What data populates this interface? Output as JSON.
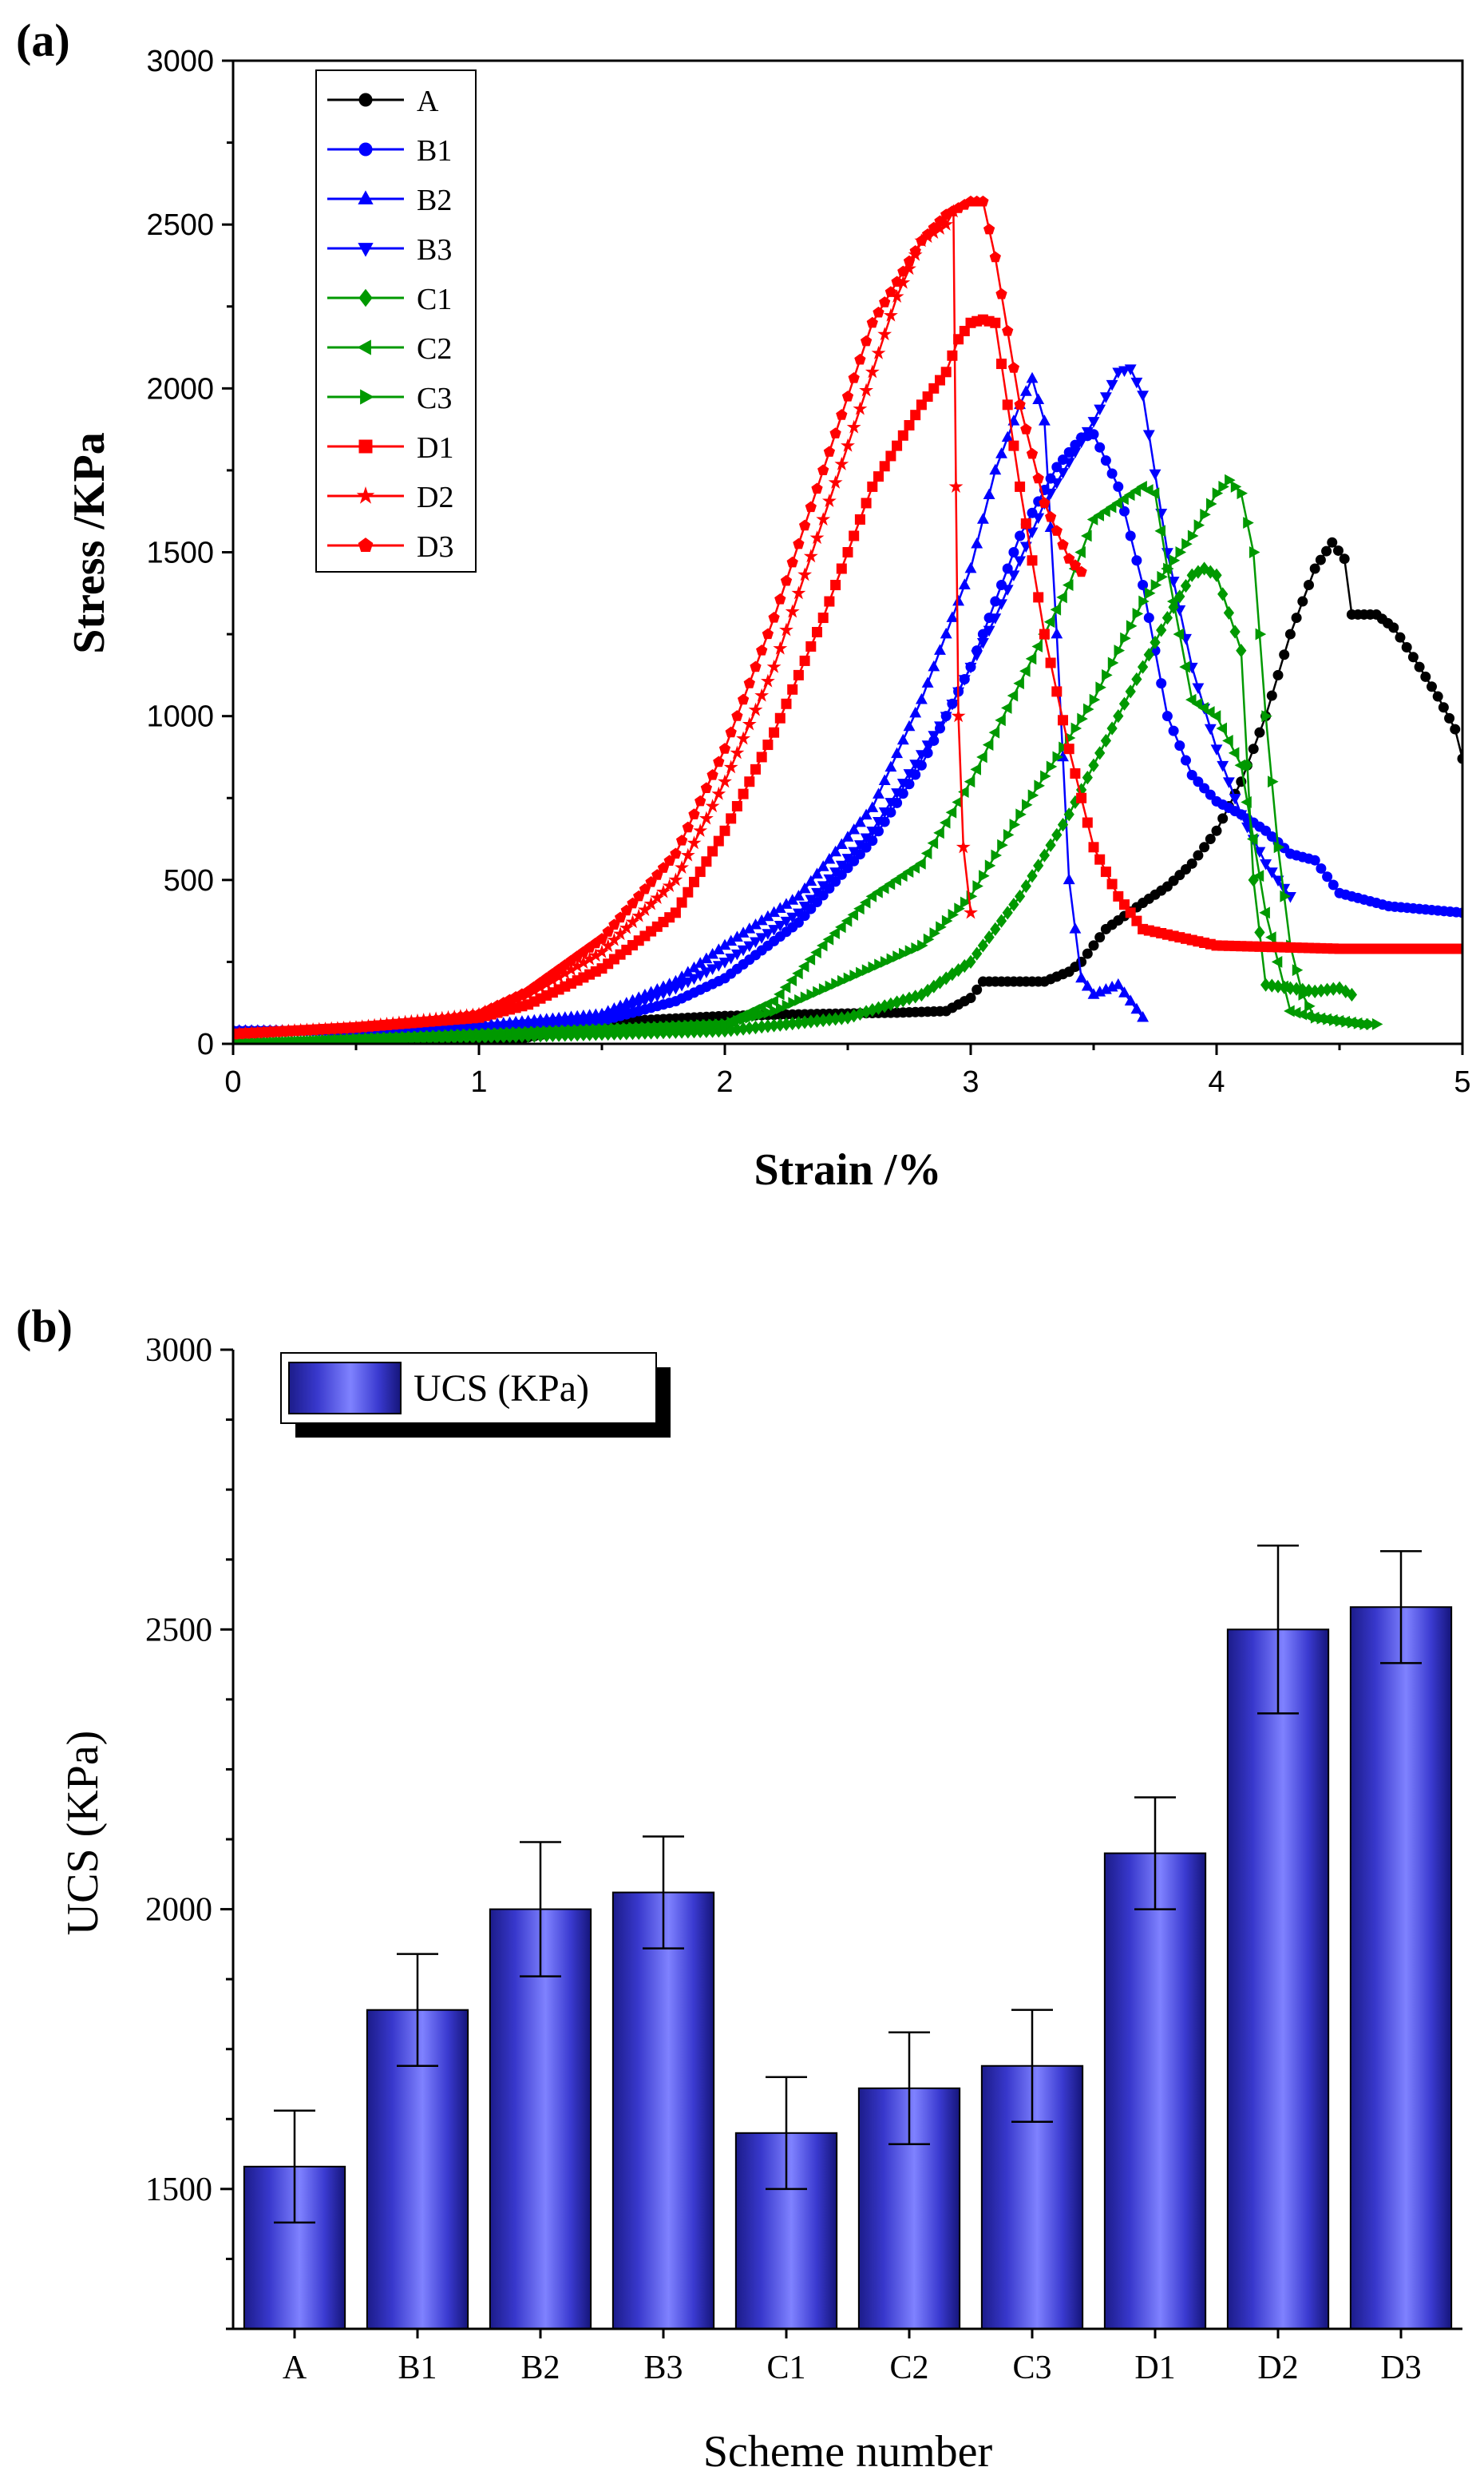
{
  "chart_data": [
    {
      "panel": "(a)",
      "type": "line",
      "title": "",
      "xlabel": "Strain /%",
      "ylabel": "Stress /KPa",
      "xlim": [
        0,
        5
      ],
      "ylim": [
        0,
        3000
      ],
      "xticks": [
        "0",
        "1",
        "2",
        "3",
        "4",
        "5"
      ],
      "yticks": [
        "0",
        "500",
        "1000",
        "1500",
        "2000",
        "2500",
        "3000"
      ],
      "legend_position": "top-left",
      "series": [
        {
          "name": "A",
          "color": "#000000",
          "marker": "circle",
          "x": [
            0,
            0.6,
            1.15,
            1.2,
            1.6,
            2.0,
            2.3,
            2.7,
            2.9,
            3.0,
            3.05,
            3.3,
            3.4,
            3.45,
            3.55,
            3.7,
            3.8,
            3.9,
            4.0,
            4.1,
            4.2,
            4.3,
            4.4,
            4.47,
            4.52,
            4.55,
            4.65,
            4.72,
            4.8,
            4.9,
            4.97,
            5.0
          ],
          "y": [
            0,
            0,
            0,
            20,
            70,
            85,
            90,
            95,
            100,
            140,
            190,
            190,
            220,
            250,
            350,
            430,
            480,
            550,
            650,
            800,
            1000,
            1250,
            1450,
            1530,
            1480,
            1310,
            1310,
            1270,
            1180,
            1060,
            960,
            870
          ]
        },
        {
          "name": "B1",
          "color": "#0000ff",
          "marker": "circle",
          "x": [
            0,
            0.5,
            1.0,
            1.5,
            1.8,
            2.0,
            2.3,
            2.6,
            2.8,
            3.0,
            3.2,
            3.35,
            3.45,
            3.5,
            3.6,
            3.7,
            3.8,
            3.9,
            4.0,
            4.1,
            4.2,
            4.3,
            4.4,
            4.5,
            4.7,
            5.0
          ],
          "y": [
            40,
            40,
            50,
            70,
            130,
            200,
            370,
            620,
            850,
            1150,
            1550,
            1760,
            1850,
            1860,
            1700,
            1400,
            1000,
            820,
            740,
            700,
            650,
            580,
            560,
            460,
            420,
            400
          ]
        },
        {
          "name": "B2",
          "color": "#0000ff",
          "marker": "triangle-up",
          "x": [
            0,
            0.5,
            1.0,
            1.5,
            1.8,
            2.0,
            2.3,
            2.6,
            2.8,
            3.0,
            3.1,
            3.2,
            3.25,
            3.3,
            3.35,
            3.4,
            3.45,
            3.5,
            3.6,
            3.7
          ],
          "y": [
            40,
            40,
            55,
            90,
            190,
            300,
            450,
            720,
            1050,
            1450,
            1750,
            1950,
            2030,
            1900,
            1250,
            500,
            200,
            150,
            180,
            80
          ]
        },
        {
          "name": "B3",
          "color": "#0000ff",
          "marker": "triangle-down",
          "x": [
            0,
            0.5,
            1.0,
            1.5,
            1.8,
            2.0,
            2.3,
            2.6,
            2.9,
            3.1,
            3.3,
            3.5,
            3.6,
            3.65,
            3.7,
            3.8,
            3.9,
            4.0,
            4.1,
            4.2,
            4.3
          ],
          "y": [
            40,
            40,
            50,
            80,
            170,
            250,
            400,
            650,
            1000,
            1300,
            1650,
            1900,
            2050,
            2060,
            1980,
            1500,
            1150,
            900,
            700,
            550,
            450
          ]
        },
        {
          "name": "C1",
          "color": "#009900",
          "marker": "diamond",
          "x": [
            0,
            1.0,
            2.0,
            2.5,
            2.8,
            3.0,
            3.2,
            3.4,
            3.6,
            3.8,
            3.9,
            3.95,
            4.0,
            4.1,
            4.15,
            4.2,
            4.3,
            4.4,
            4.5,
            4.55
          ],
          "y": [
            0,
            20,
            40,
            80,
            150,
            250,
            450,
            700,
            1000,
            1300,
            1430,
            1450,
            1430,
            1200,
            500,
            180,
            170,
            160,
            170,
            150
          ]
        },
        {
          "name": "C2",
          "color": "#009900",
          "marker": "triangle-left",
          "x": [
            0,
            1.0,
            2.0,
            2.2,
            2.4,
            2.6,
            2.8,
            3.0,
            3.2,
            3.4,
            3.5,
            3.6,
            3.7,
            3.75,
            3.8,
            3.9,
            4.0,
            4.1,
            4.2,
            4.3,
            4.4,
            4.5,
            4.6
          ],
          "y": [
            0,
            30,
            60,
            130,
            300,
            450,
            550,
            800,
            1100,
            1400,
            1600,
            1650,
            1700,
            1680,
            1450,
            1050,
            1000,
            850,
            400,
            100,
            80,
            70,
            60
          ]
        },
        {
          "name": "C3",
          "color": "#009900",
          "marker": "triangle-right",
          "x": [
            0,
            1.0,
            2.0,
            2.2,
            2.5,
            2.8,
            3.0,
            3.2,
            3.5,
            3.7,
            3.9,
            4.0,
            4.05,
            4.1,
            4.15,
            4.2,
            4.25,
            4.3,
            4.35,
            4.4,
            4.5,
            4.6,
            4.65
          ],
          "y": [
            0,
            30,
            60,
            100,
            200,
            300,
            450,
            700,
            1050,
            1350,
            1550,
            1680,
            1720,
            1680,
            1500,
            1000,
            600,
            300,
            150,
            80,
            70,
            60,
            60
          ]
        },
        {
          "name": "D1",
          "color": "#ff0000",
          "marker": "square",
          "x": [
            0,
            0.5,
            1.0,
            1.2,
            1.5,
            1.8,
            2.0,
            2.2,
            2.4,
            2.6,
            2.8,
            2.9,
            2.95,
            3.0,
            3.05,
            3.1,
            3.2,
            3.3,
            3.4,
            3.5,
            3.6,
            3.7,
            4.0,
            4.5,
            5.0
          ],
          "y": [
            30,
            50,
            80,
            120,
            230,
            400,
            650,
            950,
            1300,
            1700,
            1950,
            2050,
            2150,
            2200,
            2210,
            2200,
            1700,
            1250,
            900,
            600,
            450,
            350,
            300,
            290,
            290
          ]
        },
        {
          "name": "D2",
          "color": "#ff0000",
          "marker": "star",
          "x": [
            0,
            0.5,
            1.0,
            1.2,
            1.5,
            1.8,
            2.0,
            2.2,
            2.4,
            2.6,
            2.7,
            2.8,
            2.9,
            2.93,
            2.94,
            2.95,
            2.97,
            3.0
          ],
          "y": [
            30,
            50,
            90,
            150,
            280,
            500,
            800,
            1150,
            1600,
            2050,
            2280,
            2450,
            2500,
            2540,
            1700,
            1000,
            600,
            400
          ]
        },
        {
          "name": "D3",
          "color": "#ff0000",
          "marker": "pentagon",
          "x": [
            0,
            0.5,
            0.8,
            1.0,
            1.2,
            1.5,
            1.8,
            2.0,
            2.2,
            2.4,
            2.6,
            2.8,
            2.9,
            3.0,
            3.05,
            3.1,
            3.2,
            3.3,
            3.4,
            3.45
          ],
          "y": [
            30,
            50,
            70,
            90,
            160,
            320,
            580,
            900,
            1300,
            1750,
            2200,
            2450,
            2530,
            2570,
            2570,
            2400,
            1950,
            1650,
            1480,
            1440
          ]
        }
      ]
    },
    {
      "panel": "(b)",
      "type": "bar",
      "title": "",
      "xlabel": "Scheme number",
      "ylabel": "UCS (KPa)",
      "ylim": [
        1250,
        3000
      ],
      "yticks": [
        "1500",
        "2000",
        "2500",
        "3000"
      ],
      "legend_position": "top-left",
      "legend": "UCS (KPa)",
      "categories": [
        "A",
        "B1",
        "B2",
        "B3",
        "C1",
        "C2",
        "C3",
        "D1",
        "D2",
        "D3"
      ],
      "values": [
        1540,
        1820,
        2000,
        2030,
        1600,
        1680,
        1720,
        2100,
        2500,
        2540
      ],
      "errors": [
        100,
        100,
        120,
        100,
        100,
        100,
        100,
        100,
        150,
        100
      ]
    }
  ],
  "colors": {
    "bar_gradient": [
      "#1c1c8a",
      "#3838cc",
      "#7f82ff",
      "#3a3ad0",
      "#15157a"
    ]
  }
}
